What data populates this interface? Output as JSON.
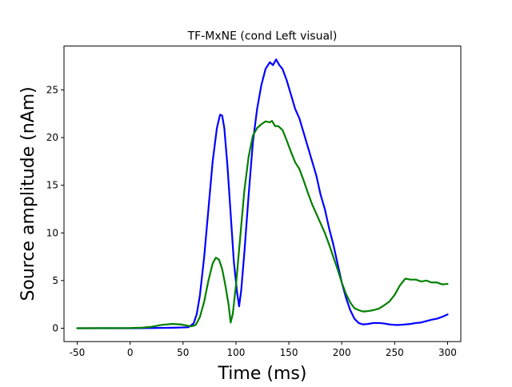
{
  "chart_data": {
    "type": "line",
    "title": "TF-MxNE (cond Left visual)",
    "xlabel": "Time (ms)",
    "ylabel": "Source amplitude (nAm)",
    "xlim": [
      -62.5,
      312.5
    ],
    "ylim": [
      -1.4,
      29.6
    ],
    "x_ticks": [
      -50,
      0,
      50,
      100,
      150,
      200,
      250,
      300
    ],
    "y_ticks": [
      0,
      5,
      10,
      15,
      20,
      25
    ],
    "grid": false,
    "legend": "none",
    "series": [
      {
        "color": "#0000ff",
        "points": [
          [
            -50,
            0
          ],
          [
            0,
            0
          ],
          [
            20,
            0.02
          ],
          [
            40,
            0.05
          ],
          [
            55,
            0.1
          ],
          [
            60,
            0.5
          ],
          [
            63,
            1.5
          ],
          [
            66,
            3.5
          ],
          [
            70,
            7.5
          ],
          [
            74,
            12.5
          ],
          [
            78,
            17.5
          ],
          [
            82,
            21
          ],
          [
            85,
            22.4
          ],
          [
            87,
            22.3
          ],
          [
            89,
            21
          ],
          [
            92,
            17
          ],
          [
            95,
            12
          ],
          [
            98,
            7
          ],
          [
            101,
            3.8
          ],
          [
            103,
            2.3
          ],
          [
            105,
            4
          ],
          [
            108,
            8
          ],
          [
            112,
            14
          ],
          [
            116,
            19.5
          ],
          [
            120,
            23
          ],
          [
            124,
            25.5
          ],
          [
            128,
            27.2
          ],
          [
            132,
            27.9
          ],
          [
            135,
            27.6
          ],
          [
            138,
            28.2
          ],
          [
            141,
            27.6
          ],
          [
            144,
            27.2
          ],
          [
            148,
            26
          ],
          [
            152,
            24.5
          ],
          [
            156,
            23
          ],
          [
            160,
            22
          ],
          [
            164,
            20.5
          ],
          [
            168,
            19
          ],
          [
            172,
            17.5
          ],
          [
            176,
            16
          ],
          [
            180,
            14
          ],
          [
            184,
            12.5
          ],
          [
            188,
            10.5
          ],
          [
            192,
            8.8
          ],
          [
            196,
            6.8
          ],
          [
            200,
            4.8
          ],
          [
            204,
            3.2
          ],
          [
            208,
            1.9
          ],
          [
            212,
            1.0
          ],
          [
            216,
            0.55
          ],
          [
            220,
            0.4
          ],
          [
            225,
            0.45
          ],
          [
            230,
            0.55
          ],
          [
            235,
            0.55
          ],
          [
            240,
            0.5
          ],
          [
            245,
            0.4
          ],
          [
            250,
            0.35
          ],
          [
            255,
            0.35
          ],
          [
            260,
            0.4
          ],
          [
            265,
            0.45
          ],
          [
            270,
            0.55
          ],
          [
            275,
            0.6
          ],
          [
            280,
            0.75
          ],
          [
            285,
            0.9
          ],
          [
            290,
            1.0
          ],
          [
            295,
            1.2
          ],
          [
            300,
            1.45
          ]
        ]
      },
      {
        "color": "#008000",
        "points": [
          [
            -50,
            0
          ],
          [
            0,
            0.02
          ],
          [
            10,
            0.05
          ],
          [
            20,
            0.15
          ],
          [
            30,
            0.35
          ],
          [
            40,
            0.45
          ],
          [
            48,
            0.4
          ],
          [
            55,
            0.25
          ],
          [
            58,
            0.2
          ],
          [
            62,
            0.35
          ],
          [
            66,
            1.2
          ],
          [
            70,
            2.8
          ],
          [
            74,
            5
          ],
          [
            78,
            6.8
          ],
          [
            81,
            7.4
          ],
          [
            84,
            7.2
          ],
          [
            87,
            6.2
          ],
          [
            90,
            4.5
          ],
          [
            93,
            2.5
          ],
          [
            95,
            0.6
          ],
          [
            97,
            1.5
          ],
          [
            100,
            4.5
          ],
          [
            104,
            9.5
          ],
          [
            108,
            14.5
          ],
          [
            112,
            18
          ],
          [
            116,
            20.2
          ],
          [
            120,
            21
          ],
          [
            124,
            21.4
          ],
          [
            128,
            21.7
          ],
          [
            132,
            21.6
          ],
          [
            134,
            21.75
          ],
          [
            137,
            21.2
          ],
          [
            140,
            21.2
          ],
          [
            144,
            20.8
          ],
          [
            148,
            19.7
          ],
          [
            152,
            18.5
          ],
          [
            156,
            17.4
          ],
          [
            160,
            16.7
          ],
          [
            164,
            15.5
          ],
          [
            168,
            14.2
          ],
          [
            172,
            13
          ],
          [
            176,
            12
          ],
          [
            180,
            11
          ],
          [
            184,
            10
          ],
          [
            188,
            8.8
          ],
          [
            192,
            7.5
          ],
          [
            196,
            6.2
          ],
          [
            200,
            4.8
          ],
          [
            204,
            3.6
          ],
          [
            208,
            2.7
          ],
          [
            212,
            2.1
          ],
          [
            216,
            1.9
          ],
          [
            220,
            1.75
          ],
          [
            225,
            1.8
          ],
          [
            230,
            1.9
          ],
          [
            235,
            2.05
          ],
          [
            240,
            2.4
          ],
          [
            245,
            2.8
          ],
          [
            250,
            3.5
          ],
          [
            255,
            4.5
          ],
          [
            260,
            5.2
          ],
          [
            265,
            5.1
          ],
          [
            270,
            5.1
          ],
          [
            275,
            4.9
          ],
          [
            280,
            5.0
          ],
          [
            285,
            4.8
          ],
          [
            290,
            4.8
          ],
          [
            295,
            4.6
          ],
          [
            300,
            4.65
          ]
        ]
      }
    ]
  }
}
